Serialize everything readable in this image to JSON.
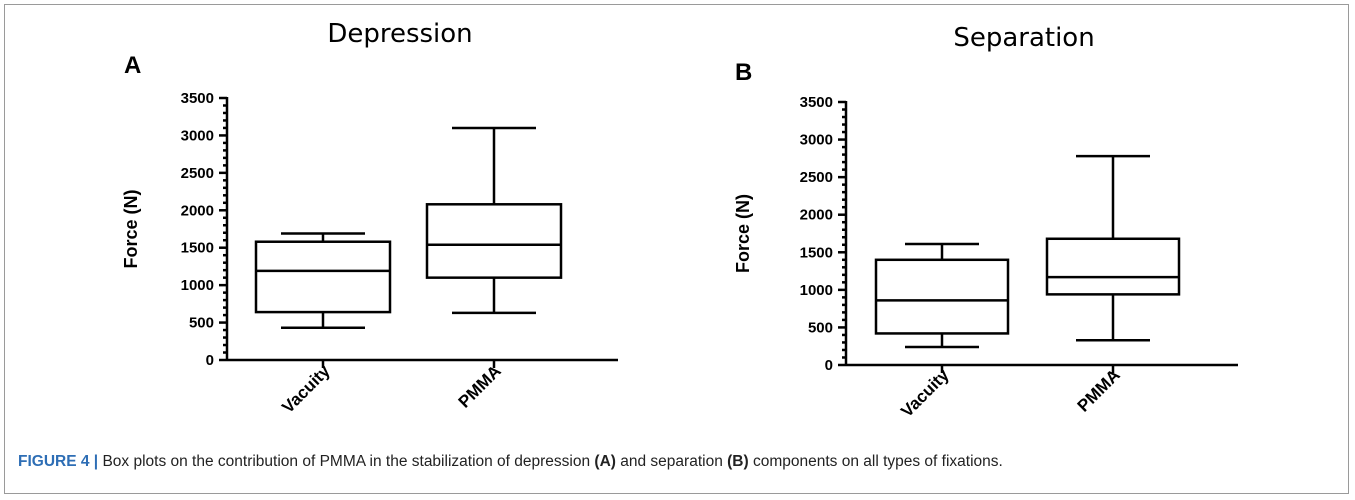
{
  "chart_data": [
    {
      "type": "box",
      "panel": "A",
      "title": "Depression",
      "ylabel": "Force (N)",
      "ylim": [
        0,
        3500
      ],
      "yticks": [
        0,
        500,
        1000,
        1500,
        2000,
        2500,
        3000,
        3500
      ],
      "categories": [
        "Vacuity",
        "PMMA"
      ],
      "boxes": [
        {
          "category": "Vacuity",
          "min": 430,
          "q1": 640,
          "median": 1190,
          "q3": 1580,
          "max": 1690
        },
        {
          "category": "PMMA",
          "min": 630,
          "q1": 1100,
          "median": 1540,
          "q3": 2080,
          "max": 3100
        }
      ]
    },
    {
      "type": "box",
      "panel": "B",
      "title": "Separation",
      "ylabel": "Force (N)",
      "ylim": [
        0,
        3500
      ],
      "yticks": [
        0,
        500,
        1000,
        1500,
        2000,
        2500,
        3000,
        3500
      ],
      "categories": [
        "Vacuity",
        "PMMA"
      ],
      "boxes": [
        {
          "category": "Vacuity",
          "min": 240,
          "q1": 420,
          "median": 860,
          "q3": 1400,
          "max": 1610
        },
        {
          "category": "PMMA",
          "min": 330,
          "q1": 940,
          "median": 1170,
          "q3": 1680,
          "max": 2780
        }
      ]
    }
  ],
  "caption": {
    "figure_label": "FIGURE 4 |",
    "text_1": " Box plots on the contribution of PMMA in the stabilization of depression ",
    "ref_a": "(A)",
    "text_2": " and separation ",
    "ref_b": "(B)",
    "text_3": " components on all types of fixations."
  }
}
